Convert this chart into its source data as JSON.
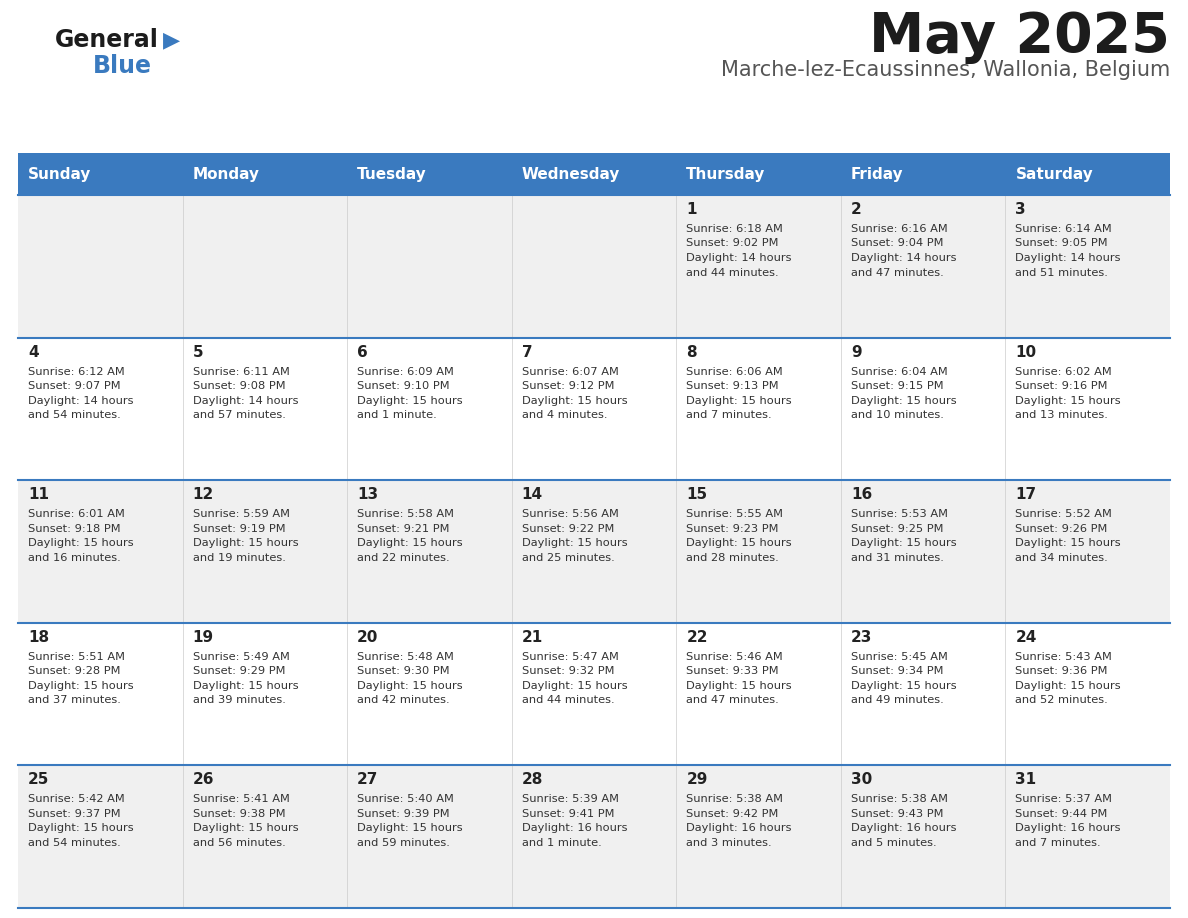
{
  "title": "May 2025",
  "subtitle": "Marche-lez-Ecaussinnes, Wallonia, Belgium",
  "header_color": "#3a7abf",
  "header_text_color": "#ffffff",
  "row_colors": [
    "#ffffff",
    "#eeeeee",
    "#ffffff",
    "#eeeeee",
    "#ffffff",
    "#eeeeee"
  ],
  "border_color": "#3a7abf",
  "day_names": [
    "Sunday",
    "Monday",
    "Tuesday",
    "Wednesday",
    "Thursday",
    "Friday",
    "Saturday"
  ],
  "days": [
    {
      "day": 1,
      "col": 4,
      "row": 0,
      "sunrise": "6:18 AM",
      "sunset": "9:02 PM",
      "daylight": "14 hours and 44 minutes."
    },
    {
      "day": 2,
      "col": 5,
      "row": 0,
      "sunrise": "6:16 AM",
      "sunset": "9:04 PM",
      "daylight": "14 hours and 47 minutes."
    },
    {
      "day": 3,
      "col": 6,
      "row": 0,
      "sunrise": "6:14 AM",
      "sunset": "9:05 PM",
      "daylight": "14 hours and 51 minutes."
    },
    {
      "day": 4,
      "col": 0,
      "row": 1,
      "sunrise": "6:12 AM",
      "sunset": "9:07 PM",
      "daylight": "14 hours and 54 minutes."
    },
    {
      "day": 5,
      "col": 1,
      "row": 1,
      "sunrise": "6:11 AM",
      "sunset": "9:08 PM",
      "daylight": "14 hours and 57 minutes."
    },
    {
      "day": 6,
      "col": 2,
      "row": 1,
      "sunrise": "6:09 AM",
      "sunset": "9:10 PM",
      "daylight": "15 hours and 1 minute."
    },
    {
      "day": 7,
      "col": 3,
      "row": 1,
      "sunrise": "6:07 AM",
      "sunset": "9:12 PM",
      "daylight": "15 hours and 4 minutes."
    },
    {
      "day": 8,
      "col": 4,
      "row": 1,
      "sunrise": "6:06 AM",
      "sunset": "9:13 PM",
      "daylight": "15 hours and 7 minutes."
    },
    {
      "day": 9,
      "col": 5,
      "row": 1,
      "sunrise": "6:04 AM",
      "sunset": "9:15 PM",
      "daylight": "15 hours and 10 minutes."
    },
    {
      "day": 10,
      "col": 6,
      "row": 1,
      "sunrise": "6:02 AM",
      "sunset": "9:16 PM",
      "daylight": "15 hours and 13 minutes."
    },
    {
      "day": 11,
      "col": 0,
      "row": 2,
      "sunrise": "6:01 AM",
      "sunset": "9:18 PM",
      "daylight": "15 hours and 16 minutes."
    },
    {
      "day": 12,
      "col": 1,
      "row": 2,
      "sunrise": "5:59 AM",
      "sunset": "9:19 PM",
      "daylight": "15 hours and 19 minutes."
    },
    {
      "day": 13,
      "col": 2,
      "row": 2,
      "sunrise": "5:58 AM",
      "sunset": "9:21 PM",
      "daylight": "15 hours and 22 minutes."
    },
    {
      "day": 14,
      "col": 3,
      "row": 2,
      "sunrise": "5:56 AM",
      "sunset": "9:22 PM",
      "daylight": "15 hours and 25 minutes."
    },
    {
      "day": 15,
      "col": 4,
      "row": 2,
      "sunrise": "5:55 AM",
      "sunset": "9:23 PM",
      "daylight": "15 hours and 28 minutes."
    },
    {
      "day": 16,
      "col": 5,
      "row": 2,
      "sunrise": "5:53 AM",
      "sunset": "9:25 PM",
      "daylight": "15 hours and 31 minutes."
    },
    {
      "day": 17,
      "col": 6,
      "row": 2,
      "sunrise": "5:52 AM",
      "sunset": "9:26 PM",
      "daylight": "15 hours and 34 minutes."
    },
    {
      "day": 18,
      "col": 0,
      "row": 3,
      "sunrise": "5:51 AM",
      "sunset": "9:28 PM",
      "daylight": "15 hours and 37 minutes."
    },
    {
      "day": 19,
      "col": 1,
      "row": 3,
      "sunrise": "5:49 AM",
      "sunset": "9:29 PM",
      "daylight": "15 hours and 39 minutes."
    },
    {
      "day": 20,
      "col": 2,
      "row": 3,
      "sunrise": "5:48 AM",
      "sunset": "9:30 PM",
      "daylight": "15 hours and 42 minutes."
    },
    {
      "day": 21,
      "col": 3,
      "row": 3,
      "sunrise": "5:47 AM",
      "sunset": "9:32 PM",
      "daylight": "15 hours and 44 minutes."
    },
    {
      "day": 22,
      "col": 4,
      "row": 3,
      "sunrise": "5:46 AM",
      "sunset": "9:33 PM",
      "daylight": "15 hours and 47 minutes."
    },
    {
      "day": 23,
      "col": 5,
      "row": 3,
      "sunrise": "5:45 AM",
      "sunset": "9:34 PM",
      "daylight": "15 hours and 49 minutes."
    },
    {
      "day": 24,
      "col": 6,
      "row": 3,
      "sunrise": "5:43 AM",
      "sunset": "9:36 PM",
      "daylight": "15 hours and 52 minutes."
    },
    {
      "day": 25,
      "col": 0,
      "row": 4,
      "sunrise": "5:42 AM",
      "sunset": "9:37 PM",
      "daylight": "15 hours and 54 minutes."
    },
    {
      "day": 26,
      "col": 1,
      "row": 4,
      "sunrise": "5:41 AM",
      "sunset": "9:38 PM",
      "daylight": "15 hours and 56 minutes."
    },
    {
      "day": 27,
      "col": 2,
      "row": 4,
      "sunrise": "5:40 AM",
      "sunset": "9:39 PM",
      "daylight": "15 hours and 59 minutes."
    },
    {
      "day": 28,
      "col": 3,
      "row": 4,
      "sunrise": "5:39 AM",
      "sunset": "9:41 PM",
      "daylight": "16 hours and 1 minute."
    },
    {
      "day": 29,
      "col": 4,
      "row": 4,
      "sunrise": "5:38 AM",
      "sunset": "9:42 PM",
      "daylight": "16 hours and 3 minutes."
    },
    {
      "day": 30,
      "col": 5,
      "row": 4,
      "sunrise": "5:38 AM",
      "sunset": "9:43 PM",
      "daylight": "16 hours and 5 minutes."
    },
    {
      "day": 31,
      "col": 6,
      "row": 4,
      "sunrise": "5:37 AM",
      "sunset": "9:44 PM",
      "daylight": "16 hours and 7 minutes."
    }
  ]
}
